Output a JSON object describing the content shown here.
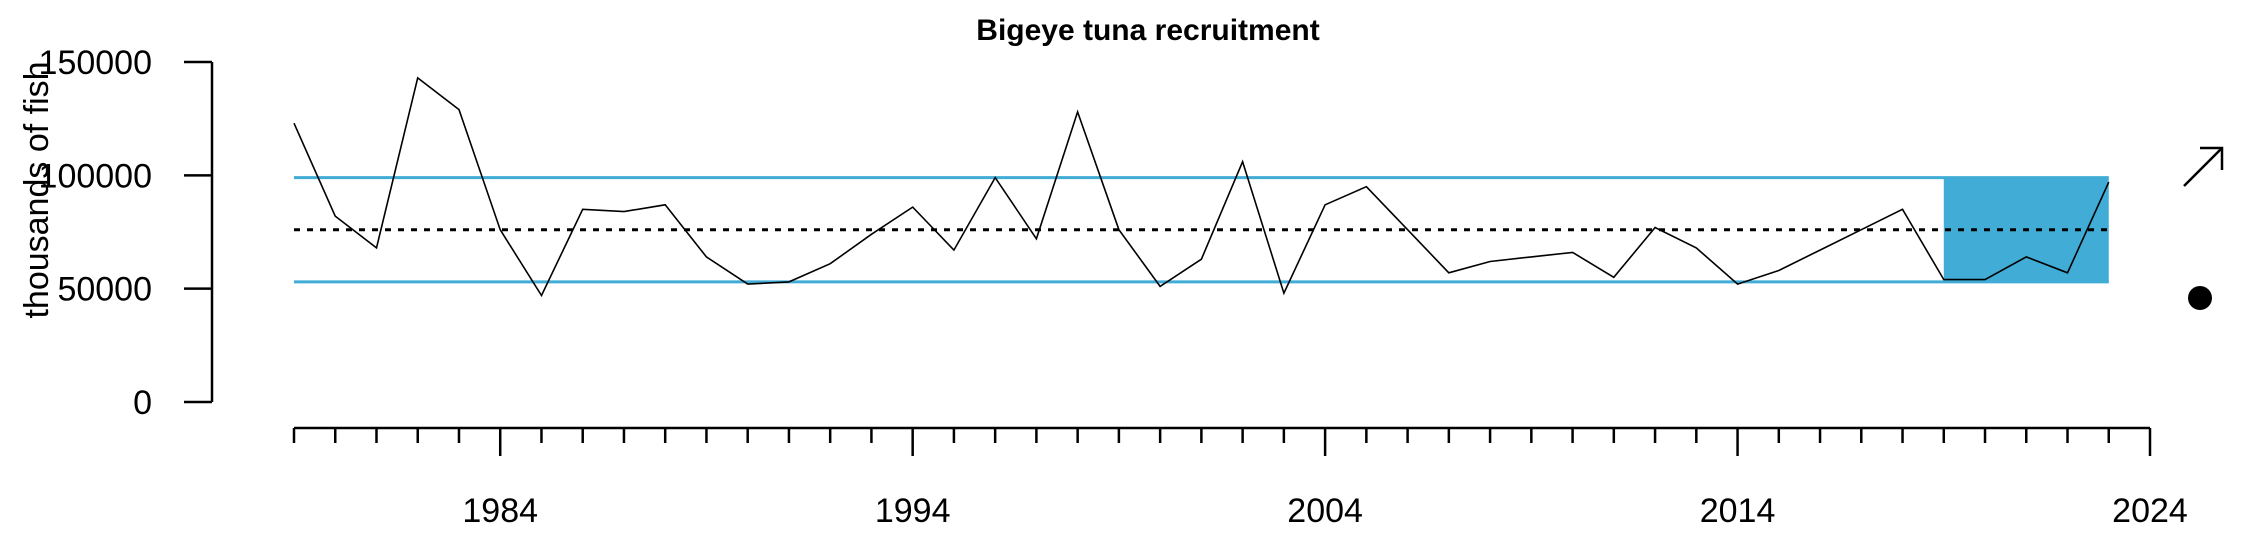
{
  "chart_data": {
    "type": "line",
    "title": "Bigeye tuna recruitment",
    "xlabel": "",
    "ylabel": "thousands of fish",
    "xlim": [
      1979,
      2024
    ],
    "ylim": [
      0,
      150000
    ],
    "x_ticks": [
      1984,
      1994,
      2004,
      2014,
      2024
    ],
    "y_ticks": [
      0,
      50000,
      100000,
      150000
    ],
    "y_tick_labels": [
      "0",
      "50000",
      "100000",
      "150000"
    ],
    "grid": false,
    "series": [
      {
        "color": "#000000",
        "x": [
          1979,
          1980,
          1981,
          1982,
          1983,
          1984,
          1985,
          1986,
          1987,
          1988,
          1989,
          1990,
          1991,
          1992,
          1993,
          1994,
          1995,
          1996,
          1997,
          1998,
          1999,
          2000,
          2001,
          2002,
          2003,
          2004,
          2005,
          2006,
          2007,
          2008,
          2009,
          2010,
          2011,
          2012,
          2013,
          2014,
          2015,
          2016,
          2017,
          2018,
          2019,
          2020,
          2021,
          2022,
          2023
        ],
        "values": [
          123000,
          82000,
          68000,
          143000,
          129000,
          76000,
          47000,
          85000,
          84000,
          87000,
          64000,
          52000,
          53000,
          61000,
          74000,
          86000,
          67000,
          99000,
          72000,
          128000,
          76000,
          51000,
          63000,
          106000,
          48000,
          87000,
          95000,
          76000,
          57000,
          62000,
          64000,
          66000,
          55000,
          77000,
          68000,
          52000,
          58000,
          67000,
          76000,
          85000,
          54000,
          54000,
          64000,
          57000,
          97000
        ]
      }
    ],
    "reference_lines": {
      "mean": 76000,
      "upper": 99000,
      "lower": 53000,
      "band_color": "#41acd6",
      "mean_style": "dotted"
    },
    "highlight_band": {
      "x_start": 2019,
      "x_end": 2023,
      "y_low": 53000,
      "y_high": 99000,
      "color": "#41acd6"
    },
    "trend_indicator": "up-arrow",
    "status_indicator": "filled-circle"
  }
}
